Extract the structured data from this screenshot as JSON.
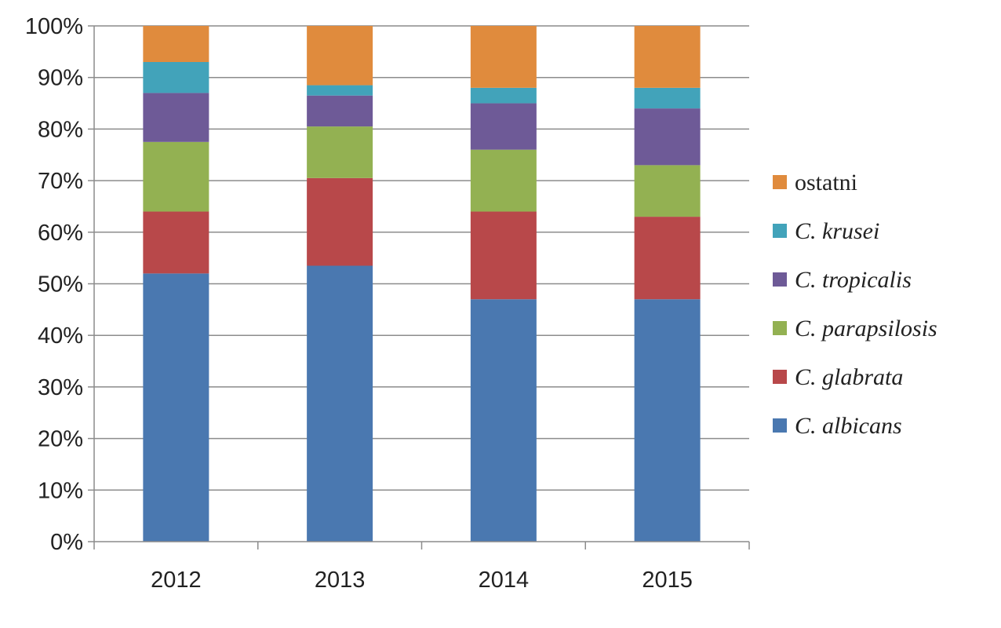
{
  "chart_data": {
    "type": "bar",
    "stacked": true,
    "normalized": true,
    "categories": [
      "2012",
      "2013",
      "2014",
      "2015"
    ],
    "yticks": [
      "0%",
      "10%",
      "20%",
      "30%",
      "40%",
      "50%",
      "60%",
      "70%",
      "80%",
      "90%",
      "100%"
    ],
    "ylim": [
      0,
      100
    ],
    "grid": true,
    "legend_position": "right",
    "series": [
      {
        "name": "C. albicans",
        "color": "#4a78b0",
        "values": [
          52,
          53.5,
          47,
          47
        ]
      },
      {
        "name": "C. glabrata",
        "color": "#b8484a",
        "values": [
          12,
          17,
          17,
          16
        ]
      },
      {
        "name": "C. parapsilosis",
        "color": "#93b152",
        "values": [
          13.5,
          10,
          12,
          10
        ]
      },
      {
        "name": "C. tropicalis",
        "color": "#6e5a97",
        "values": [
          9.5,
          6,
          9,
          11
        ]
      },
      {
        "name": "C. krusei",
        "color": "#42a3ba",
        "values": [
          6,
          2,
          3,
          4
        ]
      },
      {
        "name": "ostatni",
        "color": "#e08b3d",
        "values": [
          7,
          11.5,
          12,
          12
        ]
      }
    ]
  }
}
